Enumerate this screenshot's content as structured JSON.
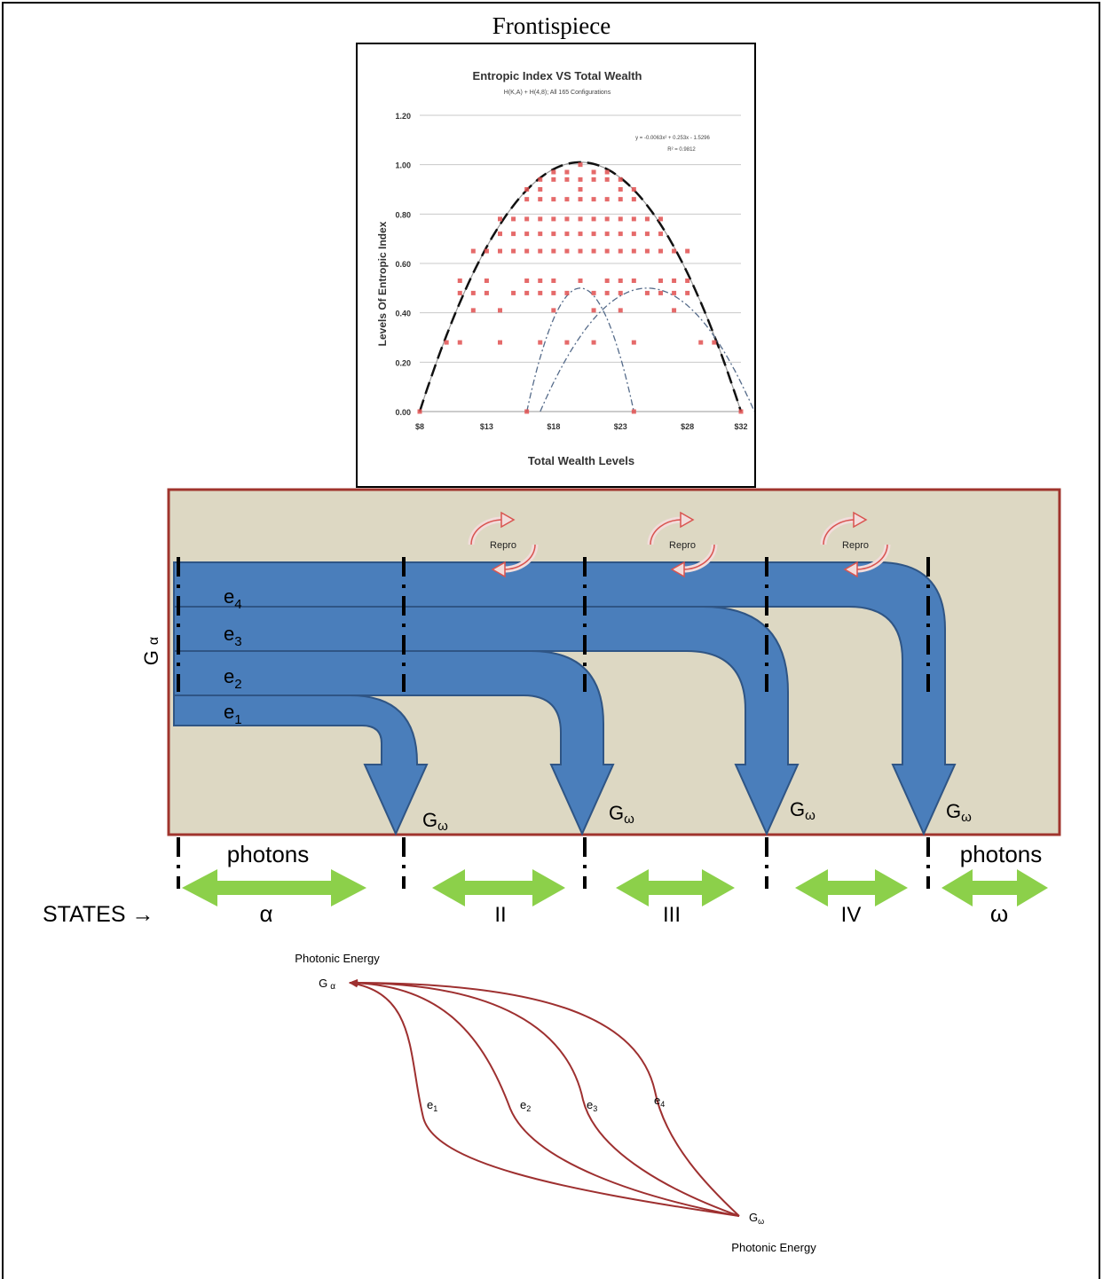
{
  "page": {
    "title": "Frontispiece"
  },
  "chart_data": {
    "type": "scatter",
    "title": "Entropic Index VS Total Wealth",
    "subtitle": "H(K,A) + H(4,8); All 165 Configurations",
    "xlabel": "Total Wealth Levels",
    "ylabel": "Levels Of Entropic Index",
    "equation": "y = -0.0063x² + 0.253x - 1.5296",
    "r_squared": "R² = 0.9812",
    "xlim": [
      8,
      32
    ],
    "ylim": [
      0,
      1.2
    ],
    "x_ticks": [
      "$8",
      "$13",
      "$18",
      "$23",
      "$28",
      "$32"
    ],
    "y_ticks": [
      "0.00",
      "0.20",
      "0.40",
      "0.60",
      "0.80",
      "1.00",
      "1.20"
    ],
    "grid": true,
    "series": [
      {
        "name": "",
        "color": "#e05050",
        "points": [
          [
            8,
            0
          ],
          [
            32,
            0
          ],
          [
            16,
            0
          ],
          [
            24,
            0
          ],
          [
            10,
            0.28
          ],
          [
            11,
            0.28
          ],
          [
            14,
            0.28
          ],
          [
            17,
            0.28
          ],
          [
            19,
            0.28
          ],
          [
            21,
            0.28
          ],
          [
            24,
            0.28
          ],
          [
            29,
            0.28
          ],
          [
            30,
            0.28
          ],
          [
            12,
            0.41
          ],
          [
            14,
            0.41
          ],
          [
            18,
            0.41
          ],
          [
            21,
            0.41
          ],
          [
            23,
            0.41
          ],
          [
            27,
            0.41
          ],
          [
            11,
            0.48
          ],
          [
            12,
            0.48
          ],
          [
            13,
            0.48
          ],
          [
            15,
            0.48
          ],
          [
            16,
            0.48
          ],
          [
            17,
            0.48
          ],
          [
            18,
            0.48
          ],
          [
            19,
            0.48
          ],
          [
            21,
            0.48
          ],
          [
            22,
            0.48
          ],
          [
            23,
            0.48
          ],
          [
            25,
            0.48
          ],
          [
            26,
            0.48
          ],
          [
            27,
            0.48
          ],
          [
            28,
            0.48
          ],
          [
            11,
            0.53
          ],
          [
            13,
            0.53
          ],
          [
            16,
            0.53
          ],
          [
            17,
            0.53
          ],
          [
            18,
            0.53
          ],
          [
            20,
            0.53
          ],
          [
            22,
            0.53
          ],
          [
            23,
            0.53
          ],
          [
            24,
            0.53
          ],
          [
            26,
            0.53
          ],
          [
            27,
            0.53
          ],
          [
            28,
            0.53
          ],
          [
            12,
            0.65
          ],
          [
            13,
            0.65
          ],
          [
            14,
            0.65
          ],
          [
            15,
            0.65
          ],
          [
            16,
            0.65
          ],
          [
            17,
            0.65
          ],
          [
            18,
            0.65
          ],
          [
            19,
            0.65
          ],
          [
            20,
            0.65
          ],
          [
            21,
            0.65
          ],
          [
            22,
            0.65
          ],
          [
            23,
            0.65
          ],
          [
            24,
            0.65
          ],
          [
            25,
            0.65
          ],
          [
            26,
            0.65
          ],
          [
            27,
            0.65
          ],
          [
            28,
            0.65
          ],
          [
            14,
            0.72
          ],
          [
            15,
            0.72
          ],
          [
            16,
            0.72
          ],
          [
            17,
            0.72
          ],
          [
            18,
            0.72
          ],
          [
            19,
            0.72
          ],
          [
            20,
            0.72
          ],
          [
            21,
            0.72
          ],
          [
            22,
            0.72
          ],
          [
            23,
            0.72
          ],
          [
            24,
            0.72
          ],
          [
            25,
            0.72
          ],
          [
            26,
            0.72
          ],
          [
            14,
            0.78
          ],
          [
            15,
            0.78
          ],
          [
            16,
            0.78
          ],
          [
            17,
            0.78
          ],
          [
            18,
            0.78
          ],
          [
            19,
            0.78
          ],
          [
            20,
            0.78
          ],
          [
            21,
            0.78
          ],
          [
            22,
            0.78
          ],
          [
            23,
            0.78
          ],
          [
            24,
            0.78
          ],
          [
            25,
            0.78
          ],
          [
            26,
            0.78
          ],
          [
            16,
            0.86
          ],
          [
            17,
            0.86
          ],
          [
            18,
            0.86
          ],
          [
            19,
            0.86
          ],
          [
            20,
            0.86
          ],
          [
            21,
            0.86
          ],
          [
            22,
            0.86
          ],
          [
            23,
            0.86
          ],
          [
            24,
            0.86
          ],
          [
            16,
            0.9
          ],
          [
            17,
            0.9
          ],
          [
            20,
            0.9
          ],
          [
            23,
            0.9
          ],
          [
            24,
            0.9
          ],
          [
            17,
            0.94
          ],
          [
            18,
            0.94
          ],
          [
            19,
            0.94
          ],
          [
            20,
            0.94
          ],
          [
            21,
            0.94
          ],
          [
            22,
            0.94
          ],
          [
            23,
            0.94
          ],
          [
            18,
            0.97
          ],
          [
            19,
            0.97
          ],
          [
            21,
            0.97
          ],
          [
            22,
            0.97
          ],
          [
            20,
            1.0
          ]
        ]
      }
    ]
  },
  "diagram": {
    "left_label": "G",
    "left_label_sub": "α",
    "stream_labels": [
      {
        "base": "e",
        "sub": "4"
      },
      {
        "base": "e",
        "sub": "3"
      },
      {
        "base": "e",
        "sub": "2"
      },
      {
        "base": "e",
        "sub": "1"
      }
    ],
    "repro_label": "Repro",
    "output_label": "G",
    "output_label_sub": "ω",
    "photons_label": "photons",
    "states_label": "STATES →",
    "state_names": [
      "α",
      "II",
      "III",
      "IV",
      "ω"
    ],
    "colors": {
      "box_fill": "#ddd8c3",
      "box_border": "#a0342d",
      "stream": "#4a7ebb",
      "stream_edge": "#2f5585",
      "green": "#8cd04a",
      "repro": "#d9534f",
      "graph": "#9e3030"
    }
  },
  "graph": {
    "source_label": "Photonic Energy",
    "source_node": "G",
    "source_node_sub": "α",
    "target_label": "Photonic Energy",
    "target_node": "G",
    "target_node_sub": "ω",
    "edge_labels": [
      {
        "base": "e",
        "sub": "1"
      },
      {
        "base": "e",
        "sub": "2"
      },
      {
        "base": "e",
        "sub": "3"
      },
      {
        "base": "e",
        "sub": "4"
      }
    ]
  }
}
